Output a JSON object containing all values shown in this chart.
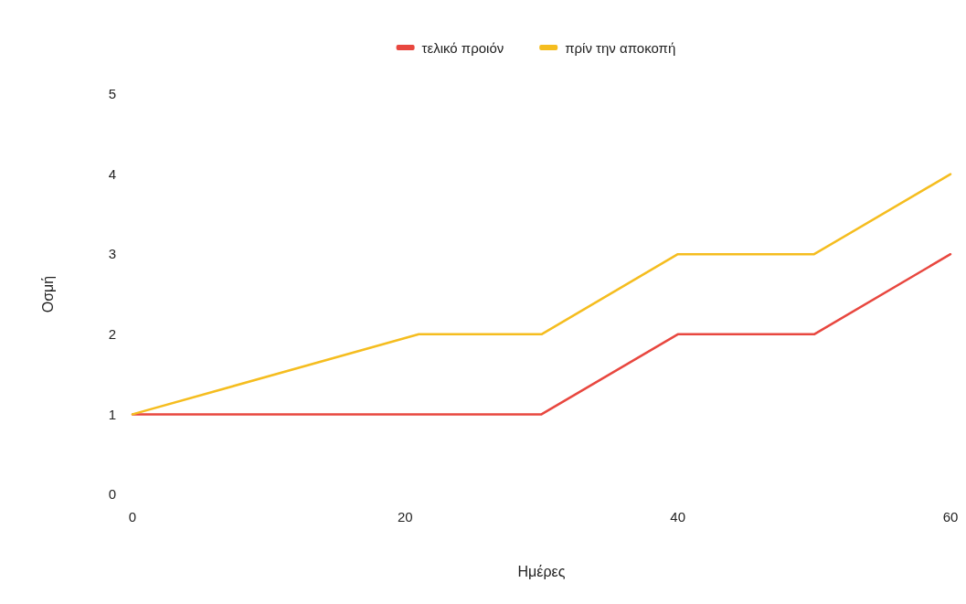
{
  "chart_data": {
    "type": "line",
    "xlabel": "Ημέρες",
    "ylabel": "Οσμή",
    "xlim": [
      0,
      60
    ],
    "xticks": [
      0,
      20,
      40,
      60
    ],
    "ylim": [
      0,
      5
    ],
    "yticks": [
      0,
      1,
      2,
      3,
      4,
      5
    ],
    "legend": "top",
    "series": [
      {
        "name": "τελικό προιόν",
        "color": "#e8473f",
        "x": [
          0,
          30,
          40,
          50,
          60
        ],
        "values": [
          1,
          1,
          2,
          2,
          3
        ]
      },
      {
        "name": "πρίν την αποκοπή",
        "color": "#f5bd1f",
        "x": [
          0,
          21,
          30,
          40,
          50,
          60
        ],
        "values": [
          1,
          2,
          2,
          3,
          3,
          4
        ]
      }
    ]
  }
}
